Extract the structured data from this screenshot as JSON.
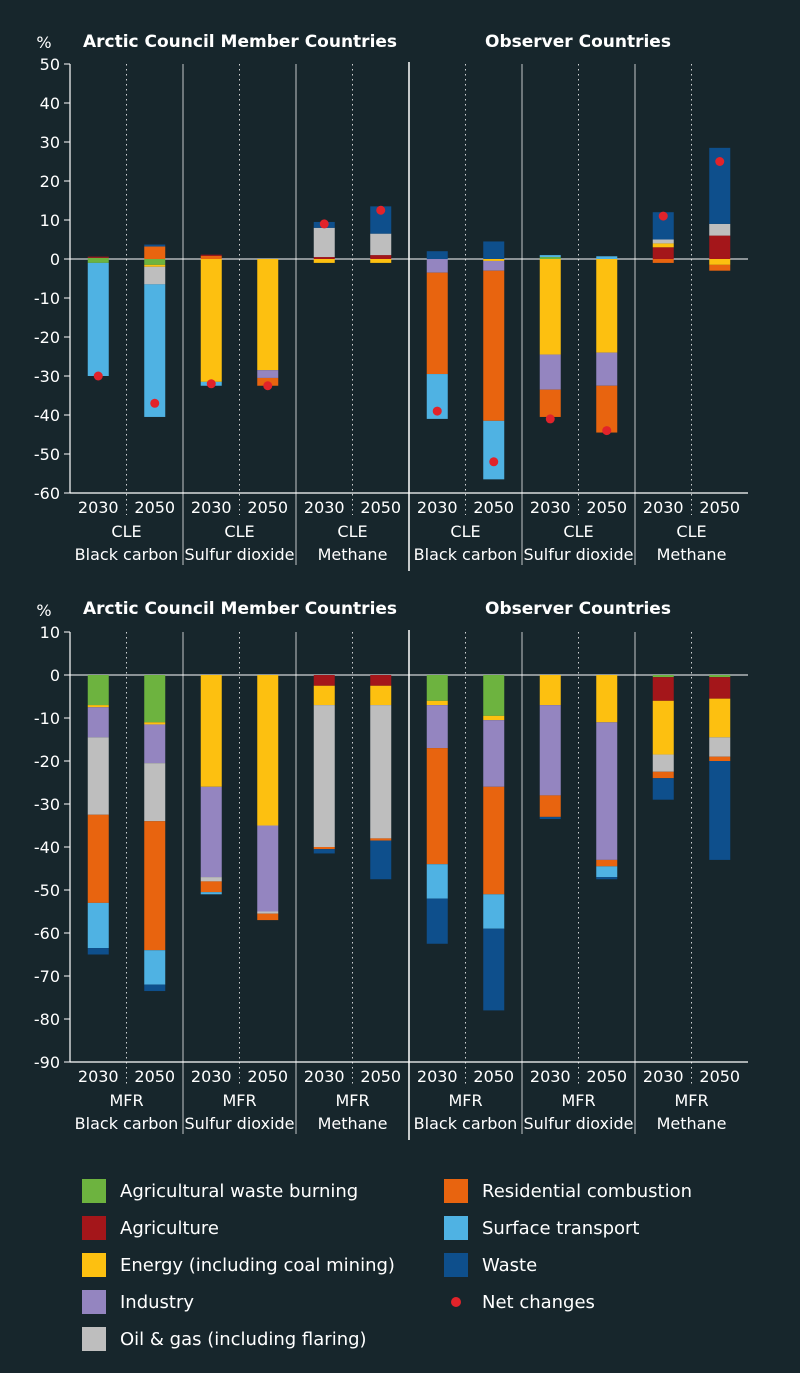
{
  "colors": {
    "Agricultural waste burning": "#6db33f",
    "Agriculture": "#a4161a",
    "Energy (including coal mining)": "#fdc010",
    "Industry": "#9485c0",
    "Oil & gas (including flaring)": "#bebebe",
    "Residential combustion": "#e8640f",
    "Surface transport": "#4fb2e3",
    "Waste": "#0e4f8c",
    "Net changes": "#e2232a"
  },
  "legend": {
    "items": [
      {
        "label": "Agricultural waste burning",
        "kind": "swatch"
      },
      {
        "label": "Agriculture",
        "kind": "swatch"
      },
      {
        "label": "Energy (including coal mining)",
        "kind": "swatch"
      },
      {
        "label": "Industry",
        "kind": "swatch"
      },
      {
        "label": "Oil & gas (including flaring)",
        "kind": "swatch"
      },
      {
        "label": "Residential combustion",
        "kind": "swatch"
      },
      {
        "label": "Surface transport",
        "kind": "swatch"
      },
      {
        "label": "Waste",
        "kind": "swatch"
      },
      {
        "label": "Net changes",
        "kind": "dot"
      }
    ]
  },
  "chart_data": [
    {
      "type": "bar",
      "stacked": true,
      "ylabel": "%",
      "ylim": [
        -60,
        50
      ],
      "yticks": [
        50,
        40,
        30,
        20,
        10,
        0,
        -10,
        -20,
        -30,
        -40,
        -50,
        -60
      ],
      "group_titles": [
        "Arctic Council Member Countries",
        "Observer Countries"
      ],
      "scenario": "CLE",
      "bars": [
        {
          "group": "Arctic Council Member Countries",
          "pollutant": "Black carbon",
          "year": "2030",
          "pos": [
            [
              "Agricultural waste burning",
              0.3
            ],
            [
              "Agriculture",
              0.3
            ]
          ],
          "neg": [
            [
              "Agricultural waste burning",
              -1
            ],
            [
              "Surface transport",
              -29
            ]
          ],
          "net": -30
        },
        {
          "group": "Arctic Council Member Countries",
          "pollutant": "Black carbon",
          "year": "2050",
          "pos": [
            [
              "Residential combustion",
              3.2
            ],
            [
              "Waste",
              0.5
            ]
          ],
          "neg": [
            [
              "Agricultural waste burning",
              -1.5
            ],
            [
              "Energy (including coal mining)",
              -0.5
            ],
            [
              "Oil & gas (including flaring)",
              -4.5
            ],
            [
              "Surface transport",
              -34
            ]
          ],
          "net": -37
        },
        {
          "group": "Arctic Council Member Countries",
          "pollutant": "Sulfur dioxide",
          "year": "2030",
          "pos": [
            [
              "Residential combustion",
              0.8
            ],
            [
              "Agriculture",
              0.3
            ]
          ],
          "neg": [
            [
              "Energy (including coal mining)",
              -31.5
            ],
            [
              "Surface transport",
              -1
            ]
          ],
          "net": -32
        },
        {
          "group": "Arctic Council Member Countries",
          "pollutant": "Sulfur dioxide",
          "year": "2050",
          "pos": [],
          "neg": [
            [
              "Energy (including coal mining)",
              -28.5
            ],
            [
              "Industry",
              -2
            ],
            [
              "Residential combustion",
              -2
            ]
          ],
          "net": -32.5
        },
        {
          "group": "Arctic Council Member Countries",
          "pollutant": "Methane",
          "year": "2030",
          "pos": [
            [
              "Agriculture",
              0.5
            ],
            [
              "Oil & gas (including flaring)",
              7.5
            ],
            [
              "Waste",
              1.5
            ]
          ],
          "neg": [
            [
              "Energy (including coal mining)",
              -1
            ]
          ],
          "net": 9
        },
        {
          "group": "Arctic Council Member Countries",
          "pollutant": "Methane",
          "year": "2050",
          "pos": [
            [
              "Agriculture",
              1
            ],
            [
              "Oil & gas (including flaring)",
              5.5
            ],
            [
              "Waste",
              7
            ]
          ],
          "neg": [
            [
              "Energy (including coal mining)",
              -1
            ]
          ],
          "net": 12.5
        },
        {
          "group": "Observer Countries",
          "pollutant": "Black carbon",
          "year": "2030",
          "pos": [
            [
              "Waste",
              2
            ]
          ],
          "neg": [
            [
              "Industry",
              -3.5
            ],
            [
              "Residential combustion",
              -26
            ],
            [
              "Surface transport",
              -11.5
            ]
          ],
          "net": -39
        },
        {
          "group": "Observer Countries",
          "pollutant": "Black carbon",
          "year": "2050",
          "pos": [
            [
              "Waste",
              4.5
            ]
          ],
          "neg": [
            [
              "Energy (including coal mining)",
              -0.5
            ],
            [
              "Industry",
              -2.5
            ],
            [
              "Residential combustion",
              -38.5
            ],
            [
              "Surface transport",
              -15
            ]
          ],
          "net": -52
        },
        {
          "group": "Observer Countries",
          "pollutant": "Sulfur dioxide",
          "year": "2030",
          "pos": [
            [
              "Agricultural waste burning",
              0.5
            ],
            [
              "Surface transport",
              0.5
            ]
          ],
          "neg": [
            [
              "Energy (including coal mining)",
              -24.5
            ],
            [
              "Industry",
              -9
            ],
            [
              "Residential combustion",
              -7
            ]
          ],
          "net": -41
        },
        {
          "group": "Observer Countries",
          "pollutant": "Sulfur dioxide",
          "year": "2050",
          "pos": [
            [
              "Surface transport",
              0.7
            ]
          ],
          "neg": [
            [
              "Energy (including coal mining)",
              -24
            ],
            [
              "Industry",
              -8.5
            ],
            [
              "Residential combustion",
              -12
            ]
          ],
          "net": -44
        },
        {
          "group": "Observer Countries",
          "pollutant": "Methane",
          "year": "2030",
          "pos": [
            [
              "Agriculture",
              3
            ],
            [
              "Energy (including coal mining)",
              1
            ],
            [
              "Oil & gas (including flaring)",
              1
            ],
            [
              "Waste",
              7
            ]
          ],
          "neg": [
            [
              "Residential combustion",
              -1
            ]
          ],
          "net": 11
        },
        {
          "group": "Observer Countries",
          "pollutant": "Methane",
          "year": "2050",
          "pos": [
            [
              "Agriculture",
              6
            ],
            [
              "Oil & gas (including flaring)",
              3
            ],
            [
              "Waste",
              19.5
            ]
          ],
          "neg": [
            [
              "Energy (including coal mining)",
              -1.5
            ],
            [
              "Residential combustion",
              -1.5
            ]
          ],
          "net": 25
        }
      ],
      "category_labels": [
        {
          "scenario": "CLE",
          "pollutant": "Black carbon",
          "years": [
            "2030",
            "2050"
          ]
        },
        {
          "scenario": "CLE",
          "pollutant": "Sulfur dioxide",
          "years": [
            "2030",
            "2050"
          ]
        },
        {
          "scenario": "CLE",
          "pollutant": "Methane",
          "years": [
            "2030",
            "2050"
          ]
        },
        {
          "scenario": "CLE",
          "pollutant": "Black carbon",
          "years": [
            "2030",
            "2050"
          ]
        },
        {
          "scenario": "CLE",
          "pollutant": "Sulfur dioxide",
          "years": [
            "2030",
            "2050"
          ]
        },
        {
          "scenario": "CLE",
          "pollutant": "Methane",
          "years": [
            "2030",
            "2050"
          ]
        }
      ]
    },
    {
      "type": "bar",
      "stacked": true,
      "ylabel": "%",
      "ylim": [
        -90,
        10
      ],
      "yticks": [
        10,
        0,
        -10,
        -20,
        -30,
        -40,
        -50,
        -60,
        -70,
        -80,
        -90
      ],
      "group_titles": [
        "Arctic Council Member Countries",
        "Observer Countries"
      ],
      "scenario": "MFR",
      "bars": [
        {
          "group": "Arctic Council Member Countries",
          "pollutant": "Black carbon",
          "year": "2030",
          "pos": [],
          "neg": [
            [
              "Agricultural waste burning",
              -7
            ],
            [
              "Energy (including coal mining)",
              -0.5
            ],
            [
              "Industry",
              -7
            ],
            [
              "Oil & gas (including flaring)",
              -18
            ],
            [
              "Residential combustion",
              -20.5
            ],
            [
              "Surface transport",
              -10.5
            ],
            [
              "Waste",
              -1.5
            ]
          ]
        },
        {
          "group": "Arctic Council Member Countries",
          "pollutant": "Black carbon",
          "year": "2050",
          "pos": [],
          "neg": [
            [
              "Agricultural waste burning",
              -11
            ],
            [
              "Energy (including coal mining)",
              -0.5
            ],
            [
              "Industry",
              -9
            ],
            [
              "Oil & gas (including flaring)",
              -13.5
            ],
            [
              "Residential combustion",
              -30
            ],
            [
              "Surface transport",
              -8
            ],
            [
              "Waste",
              -1.5
            ]
          ]
        },
        {
          "group": "Arctic Council Member Countries",
          "pollutant": "Sulfur dioxide",
          "year": "2030",
          "pos": [],
          "neg": [
            [
              "Energy (including coal mining)",
              -26
            ],
            [
              "Industry",
              -21
            ],
            [
              "Oil & gas (including flaring)",
              -1
            ],
            [
              "Residential combustion",
              -2.5
            ],
            [
              "Surface transport",
              -0.5
            ]
          ]
        },
        {
          "group": "Arctic Council Member Countries",
          "pollutant": "Sulfur dioxide",
          "year": "2050",
          "pos": [],
          "neg": [
            [
              "Energy (including coal mining)",
              -35
            ],
            [
              "Industry",
              -20
            ],
            [
              "Oil & gas (including flaring)",
              -0.5
            ],
            [
              "Residential combustion",
              -1.5
            ]
          ]
        },
        {
          "group": "Arctic Council Member Countries",
          "pollutant": "Methane",
          "year": "2030",
          "pos": [],
          "neg": [
            [
              "Agriculture",
              -2.5
            ],
            [
              "Energy (including coal mining)",
              -4.5
            ],
            [
              "Oil & gas (including flaring)",
              -33
            ],
            [
              "Residential combustion",
              -0.5
            ],
            [
              "Waste",
              -1
            ]
          ]
        },
        {
          "group": "Arctic Council Member Countries",
          "pollutant": "Methane",
          "year": "2050",
          "pos": [],
          "neg": [
            [
              "Agriculture",
              -2.5
            ],
            [
              "Energy (including coal mining)",
              -4.5
            ],
            [
              "Oil & gas (including flaring)",
              -31
            ],
            [
              "Residential combustion",
              -0.5
            ],
            [
              "Waste",
              -9
            ]
          ]
        },
        {
          "group": "Observer Countries",
          "pollutant": "Black carbon",
          "year": "2030",
          "pos": [],
          "neg": [
            [
              "Agricultural waste burning",
              -6
            ],
            [
              "Energy (including coal mining)",
              -1
            ],
            [
              "Industry",
              -10
            ],
            [
              "Residential combustion",
              -27
            ],
            [
              "Surface transport",
              -8
            ],
            [
              "Waste",
              -10.5
            ]
          ]
        },
        {
          "group": "Observer Countries",
          "pollutant": "Black carbon",
          "year": "2050",
          "pos": [],
          "neg": [
            [
              "Agricultural waste burning",
              -9.5
            ],
            [
              "Energy (including coal mining)",
              -1
            ],
            [
              "Industry",
              -15.5
            ],
            [
              "Residential combustion",
              -25
            ],
            [
              "Surface transport",
              -8
            ],
            [
              "Waste",
              -19
            ]
          ]
        },
        {
          "group": "Observer Countries",
          "pollutant": "Sulfur dioxide",
          "year": "2030",
          "pos": [],
          "neg": [
            [
              "Energy (including coal mining)",
              -7
            ],
            [
              "Industry",
              -21
            ],
            [
              "Residential combustion",
              -5
            ],
            [
              "Waste",
              -0.5
            ]
          ]
        },
        {
          "group": "Observer Countries",
          "pollutant": "Sulfur dioxide",
          "year": "2050",
          "pos": [],
          "neg": [
            [
              "Energy (including coal mining)",
              -11
            ],
            [
              "Industry",
              -32
            ],
            [
              "Residential combustion",
              -1.5
            ],
            [
              "Surface transport",
              -2.5
            ],
            [
              "Waste",
              -0.5
            ]
          ]
        },
        {
          "group": "Observer Countries",
          "pollutant": "Methane",
          "year": "2030",
          "pos": [],
          "neg": [
            [
              "Agricultural waste burning",
              -0.5
            ],
            [
              "Agriculture",
              -5.5
            ],
            [
              "Energy (including coal mining)",
              -12.5
            ],
            [
              "Oil & gas (including flaring)",
              -4
            ],
            [
              "Residential combustion",
              -1.5
            ],
            [
              "Waste",
              -5
            ]
          ]
        },
        {
          "group": "Observer Countries",
          "pollutant": "Methane",
          "year": "2050",
          "pos": [],
          "neg": [
            [
              "Agricultural waste burning",
              -0.5
            ],
            [
              "Agriculture",
              -5
            ],
            [
              "Energy (including coal mining)",
              -9
            ],
            [
              "Oil & gas (including flaring)",
              -4.5
            ],
            [
              "Residential combustion",
              -1
            ],
            [
              "Waste",
              -23
            ]
          ]
        }
      ],
      "category_labels": [
        {
          "scenario": "MFR",
          "pollutant": "Black carbon",
          "years": [
            "2030",
            "2050"
          ]
        },
        {
          "scenario": "MFR",
          "pollutant": "Sulfur dioxide",
          "years": [
            "2030",
            "2050"
          ]
        },
        {
          "scenario": "MFR",
          "pollutant": "Methane",
          "years": [
            "2030",
            "2050"
          ]
        },
        {
          "scenario": "MFR",
          "pollutant": "Black carbon",
          "years": [
            "2030",
            "2050"
          ]
        },
        {
          "scenario": "MFR",
          "pollutant": "Sulfur dioxide",
          "years": [
            "2030",
            "2050"
          ]
        },
        {
          "scenario": "MFR",
          "pollutant": "Methane",
          "years": [
            "2030",
            "2050"
          ]
        }
      ]
    }
  ]
}
